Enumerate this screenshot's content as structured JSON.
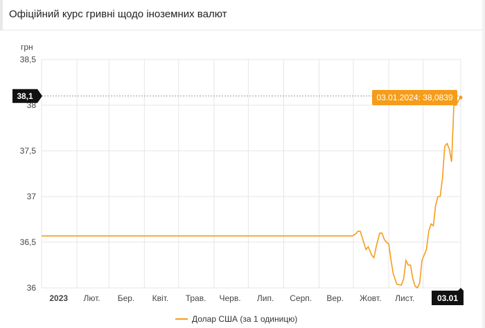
{
  "header": {
    "title": "Офіційний курс гривні щодо іноземних валют"
  },
  "colors": {
    "series": "#f59c1a",
    "grid": "#e6e6e6",
    "marker_bg": "#111111"
  },
  "chart_data": {
    "type": "line",
    "ylabel": "грн",
    "ylim": [
      36,
      38.5
    ],
    "y_ticks": [
      "38,5",
      "38",
      "37,5",
      "37",
      "36,5",
      "36"
    ],
    "y_tick_values": [
      38.5,
      38,
      37.5,
      37,
      36.5,
      36
    ],
    "x_ticks": [
      "2023",
      "Лют.",
      "Бер.",
      "Квіт.",
      "Трав.",
      "Черв.",
      "Лип.",
      "Серп.",
      "Вер.",
      "Жовт.",
      "Лист."
    ],
    "y_marker_label": "38,1",
    "y_marker_value": 38.1,
    "x_marker_label": "03.01",
    "tooltip": "03.01.2024: 38,0839",
    "legend": "Долар США (за 1 одиницю)",
    "series": [
      {
        "name": "Долар США (за 1 одиницю)",
        "points": [
          [
            "2023-01-01",
            36.5686
          ],
          [
            "2023-09-30",
            36.5686
          ],
          [
            "2023-10-03",
            36.59
          ],
          [
            "2023-10-05",
            36.62
          ],
          [
            "2023-10-07",
            36.62
          ],
          [
            "2023-10-10",
            36.5
          ],
          [
            "2023-10-12",
            36.42
          ],
          [
            "2023-10-14",
            36.45
          ],
          [
            "2023-10-17",
            36.36
          ],
          [
            "2023-10-19",
            36.33
          ],
          [
            "2023-10-21",
            36.45
          ],
          [
            "2023-10-24",
            36.6
          ],
          [
            "2023-10-26",
            36.6
          ],
          [
            "2023-10-28",
            36.53
          ],
          [
            "2023-10-30",
            36.5
          ],
          [
            "2023-11-01",
            36.48
          ],
          [
            "2023-11-03",
            36.3
          ],
          [
            "2023-11-05",
            36.15
          ],
          [
            "2023-11-08",
            36.04
          ],
          [
            "2023-11-12",
            36.03
          ],
          [
            "2023-11-14",
            36.1
          ],
          [
            "2023-11-16",
            36.3
          ],
          [
            "2023-11-18",
            36.25
          ],
          [
            "2023-11-20",
            36.25
          ],
          [
            "2023-11-22",
            36.1
          ],
          [
            "2023-11-24",
            36.02
          ],
          [
            "2023-11-26",
            36.0
          ],
          [
            "2023-11-28",
            36.05
          ],
          [
            "2023-11-30",
            36.3
          ],
          [
            "2023-12-02",
            36.36
          ],
          [
            "2023-12-04",
            36.42
          ],
          [
            "2023-12-06",
            36.62
          ],
          [
            "2023-12-08",
            36.7
          ],
          [
            "2023-12-10",
            36.68
          ],
          [
            "2023-12-12",
            36.9
          ],
          [
            "2023-12-14",
            37.0
          ],
          [
            "2023-12-16",
            37.0
          ],
          [
            "2023-12-18",
            37.2
          ],
          [
            "2023-12-20",
            37.55
          ],
          [
            "2023-12-22",
            37.58
          ],
          [
            "2023-12-24",
            37.52
          ],
          [
            "2023-12-26",
            37.38
          ],
          [
            "2023-12-28",
            38.0
          ],
          [
            "2023-12-30",
            38.0
          ],
          [
            "2024-01-01",
            38.05
          ],
          [
            "2024-01-03",
            38.0839
          ]
        ]
      }
    ]
  }
}
